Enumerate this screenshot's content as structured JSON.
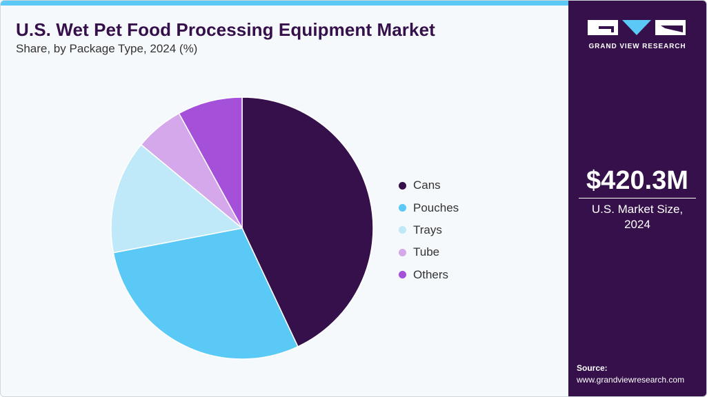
{
  "header": {
    "title": "U.S. Wet Pet Food Processing Equipment Market",
    "subtitle": "Share, by Package Type, 2024 (%)"
  },
  "chart_data": {
    "type": "pie",
    "categories": [
      "Cans",
      "Pouches",
      "Trays",
      "Tube",
      "Others"
    ],
    "values": [
      43,
      29,
      14,
      6,
      8
    ],
    "colors": [
      "#35104a",
      "#5bc9f5",
      "#bfe9f8",
      "#d4a8ea",
      "#a450d8"
    ],
    "start_angle_deg": 0,
    "direction": "clockwise",
    "legend_position": "right"
  },
  "side_panel": {
    "logo_text": "GRAND VIEW RESEARCH",
    "logo_icon": "gvr-logo-icon",
    "market_value": "$420.3M",
    "market_label_line1": "U.S. Market Size,",
    "market_label_line2": "2024",
    "source_label": "Source:",
    "source_url": "www.grandviewresearch.com"
  }
}
